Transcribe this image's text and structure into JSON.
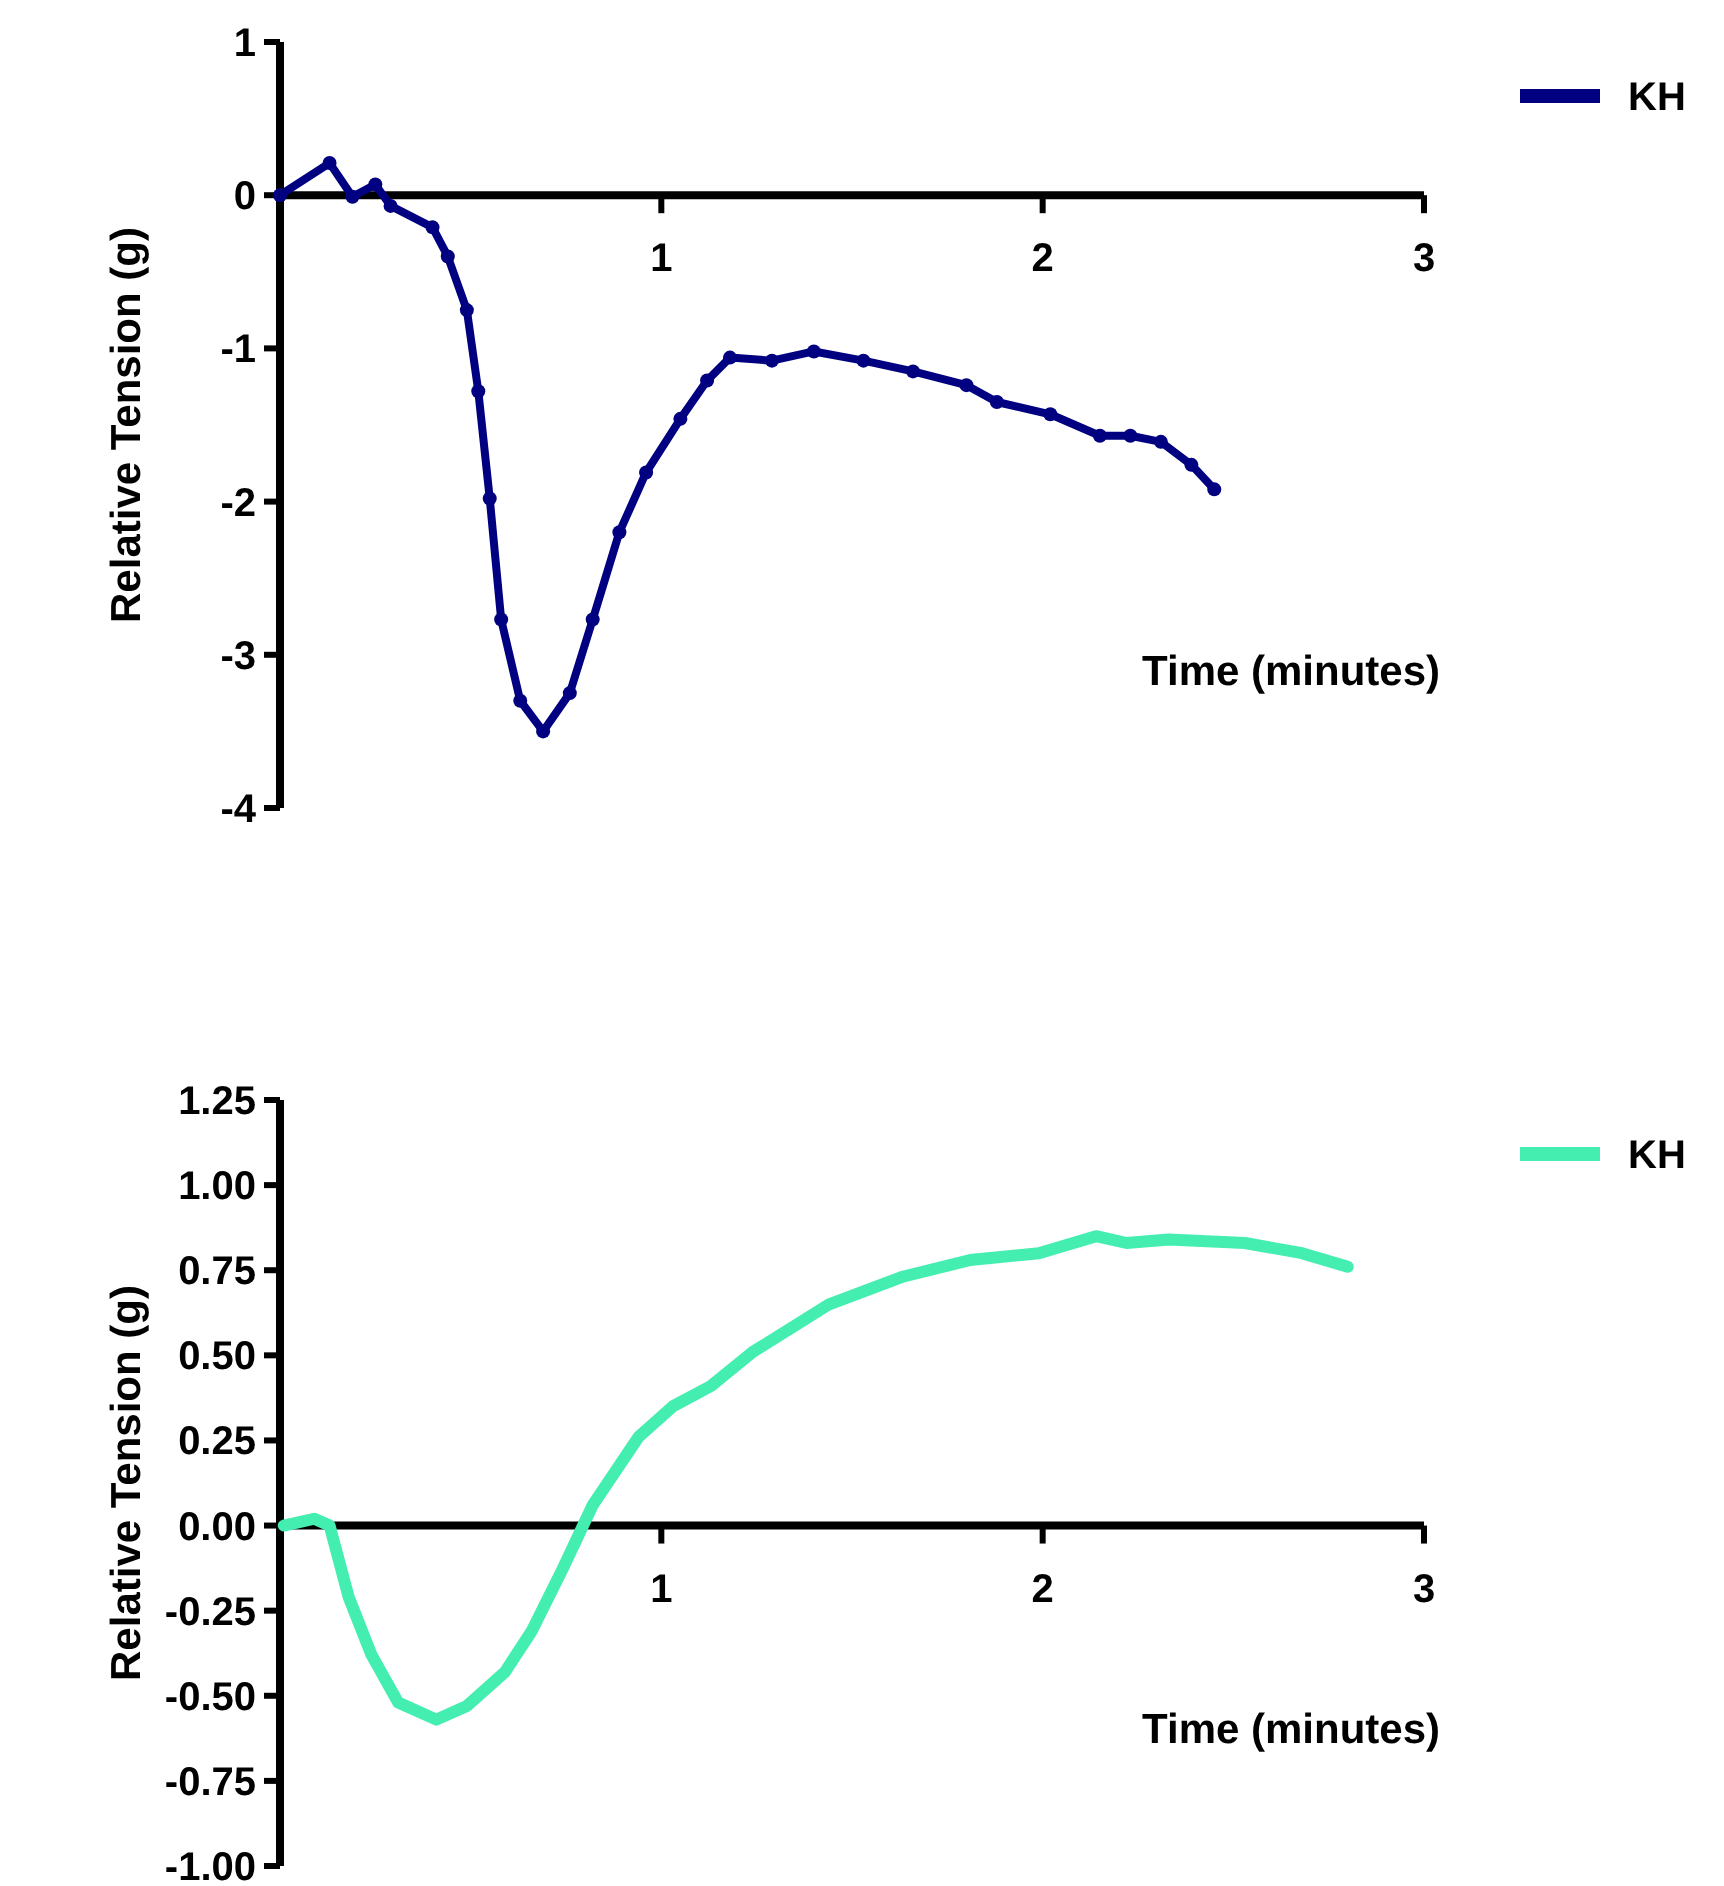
{
  "chart_data": [
    {
      "type": "line",
      "xlabel": "Time (minutes)",
      "ylabel": "Relative Tension (g)",
      "xlim": [
        0,
        3
      ],
      "xticks": [
        1,
        2,
        3
      ],
      "ylim": [
        -4,
        1
      ],
      "yticks": [
        1,
        0,
        -1,
        -2,
        -3,
        -4
      ],
      "legend": "top right",
      "marker": "circle",
      "line_style": "solid",
      "series": [
        {
          "name": "KH",
          "color": "#000080",
          "x": [
            0,
            0.13,
            0.19,
            0.25,
            0.29,
            0.4,
            0.44,
            0.49,
            0.52,
            0.55,
            0.58,
            0.63,
            0.69,
            0.76,
            0.82,
            0.89,
            0.96,
            1.05,
            1.12,
            1.18,
            1.29,
            1.4,
            1.53,
            1.66,
            1.8,
            1.88,
            2.02,
            2.15,
            2.23,
            2.31,
            2.39,
            2.45
          ],
          "values": [
            0,
            0.21,
            -0.01,
            0.07,
            -0.07,
            -0.21,
            -0.4,
            -0.75,
            -1.28,
            -1.98,
            -2.77,
            -3.3,
            -3.5,
            -3.25,
            -2.77,
            -2.2,
            -1.81,
            -1.46,
            -1.21,
            -1.06,
            -1.08,
            -1.02,
            -1.08,
            -1.15,
            -1.24,
            -1.35,
            -1.43,
            -1.57,
            -1.57,
            -1.61,
            -1.76,
            -1.92
          ]
        }
      ]
    },
    {
      "type": "line",
      "xlabel": "Time (minutes)",
      "ylabel": "Relative Tension (g)",
      "xlim": [
        0,
        3
      ],
      "xticks": [
        1,
        2,
        3
      ],
      "ylim": [
        -1,
        1.25
      ],
      "yticks": [
        1.25,
        {
          "value": 1,
          "label": "1.00"
        },
        0.75,
        {
          "value": 0.5,
          "label": "0.50"
        },
        0.25,
        {
          "value": 0,
          "label": "0.00"
        },
        -0.25,
        {
          "value": -0.5,
          "label": "-0.50"
        },
        -0.75,
        {
          "value": -1,
          "label": "-1.00"
        }
      ],
      "legend": "top right",
      "line_style": "solid",
      "series": [
        {
          "name": "KH",
          "color": "#44eeb0",
          "x": [
            0.01,
            0.09,
            0.13,
            0.18,
            0.24,
            0.31,
            0.41,
            0.49,
            0.59,
            0.66,
            0.74,
            0.82,
            0.94,
            1.03,
            1.13,
            1.24,
            1.44,
            1.63,
            1.81,
            1.99,
            2.14,
            2.22,
            2.33,
            2.53,
            2.68,
            2.8
          ],
          "values": [
            0,
            0.02,
            0,
            -0.21,
            -0.38,
            -0.52,
            -0.57,
            -0.53,
            -0.43,
            -0.31,
            -0.13,
            0.06,
            0.26,
            0.35,
            0.41,
            0.51,
            0.65,
            0.73,
            0.78,
            0.8,
            0.85,
            0.83,
            0.84,
            0.83,
            0.8,
            0.76
          ]
        }
      ]
    }
  ]
}
